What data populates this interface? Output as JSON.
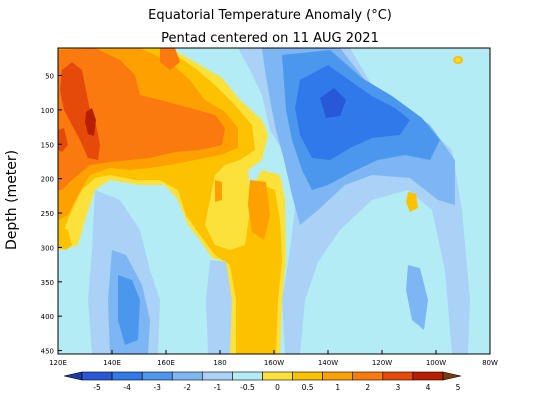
{
  "chart_data": {
    "type": "heatmap",
    "title": "Equatorial Temperature Anomaly (°C)",
    "subtitle": "Pentad centered on 11 AUG 2021",
    "ylabel": "Depth (meter)",
    "xlabel": "",
    "x_ticks": [
      "120E",
      "140E",
      "160E",
      "180",
      "160W",
      "140W",
      "120W",
      "100W",
      "80W"
    ],
    "x_tick_lon": [
      120,
      140,
      160,
      180,
      200,
      220,
      240,
      260,
      280
    ],
    "xlim": [
      120,
      280
    ],
    "y_ticks": [
      "50",
      "100",
      "150",
      "200",
      "250",
      "300",
      "350",
      "400",
      "450"
    ],
    "y_tick_depth": [
      50,
      100,
      150,
      200,
      250,
      300,
      350,
      400,
      450
    ],
    "ylim": [
      10,
      455
    ],
    "colorbar": {
      "labels": [
        "-5",
        "-4",
        "-3",
        "-2",
        "-1",
        "-0.5",
        "0",
        "0.5",
        "1",
        "2",
        "3",
        "4",
        "5"
      ],
      "levels": [
        -5,
        -4,
        -3,
        -2,
        -1,
        -0.5,
        0,
        0.5,
        1,
        2,
        3,
        4,
        5
      ],
      "colors": [
        "#1e3aa8",
        "#2857d8",
        "#2f79ea",
        "#4c97ee",
        "#7db6f2",
        "#aad1f6",
        "#b4ecf6",
        "#fce13a",
        "#fcc200",
        "#fda000",
        "#fa7a10",
        "#e54a0a",
        "#b81e00",
        "#7a3a0a"
      ]
    },
    "field": {
      "background_value": -0.3,
      "features": [
        {
          "name": "western warm core",
          "lon": [
            122,
            150
          ],
          "depth": [
            40,
            200
          ],
          "max_value": 4
        },
        {
          "name": "upper west-central warm layer",
          "lon": [
            135,
            185
          ],
          "depth": [
            80,
            170
          ],
          "max_value": 2.5
        },
        {
          "name": "dateline warm tongue",
          "lon": [
            178,
            200
          ],
          "depth": [
            170,
            455
          ],
          "max_value": 1.5
        },
        {
          "name": "eastern cold core",
          "lon": [
            205,
            260
          ],
          "depth": [
            20,
            200
          ],
          "min_value": -3.5
        },
        {
          "name": "deep western cold patch",
          "lon": [
            132,
            148
          ],
          "depth": [
            250,
            455
          ],
          "min_value": -1.5
        },
        {
          "name": "far eastern warm spot",
          "lon": [
            268,
            272
          ],
          "depth": [
            20,
            30
          ],
          "max_value": 1.5
        }
      ]
    }
  }
}
